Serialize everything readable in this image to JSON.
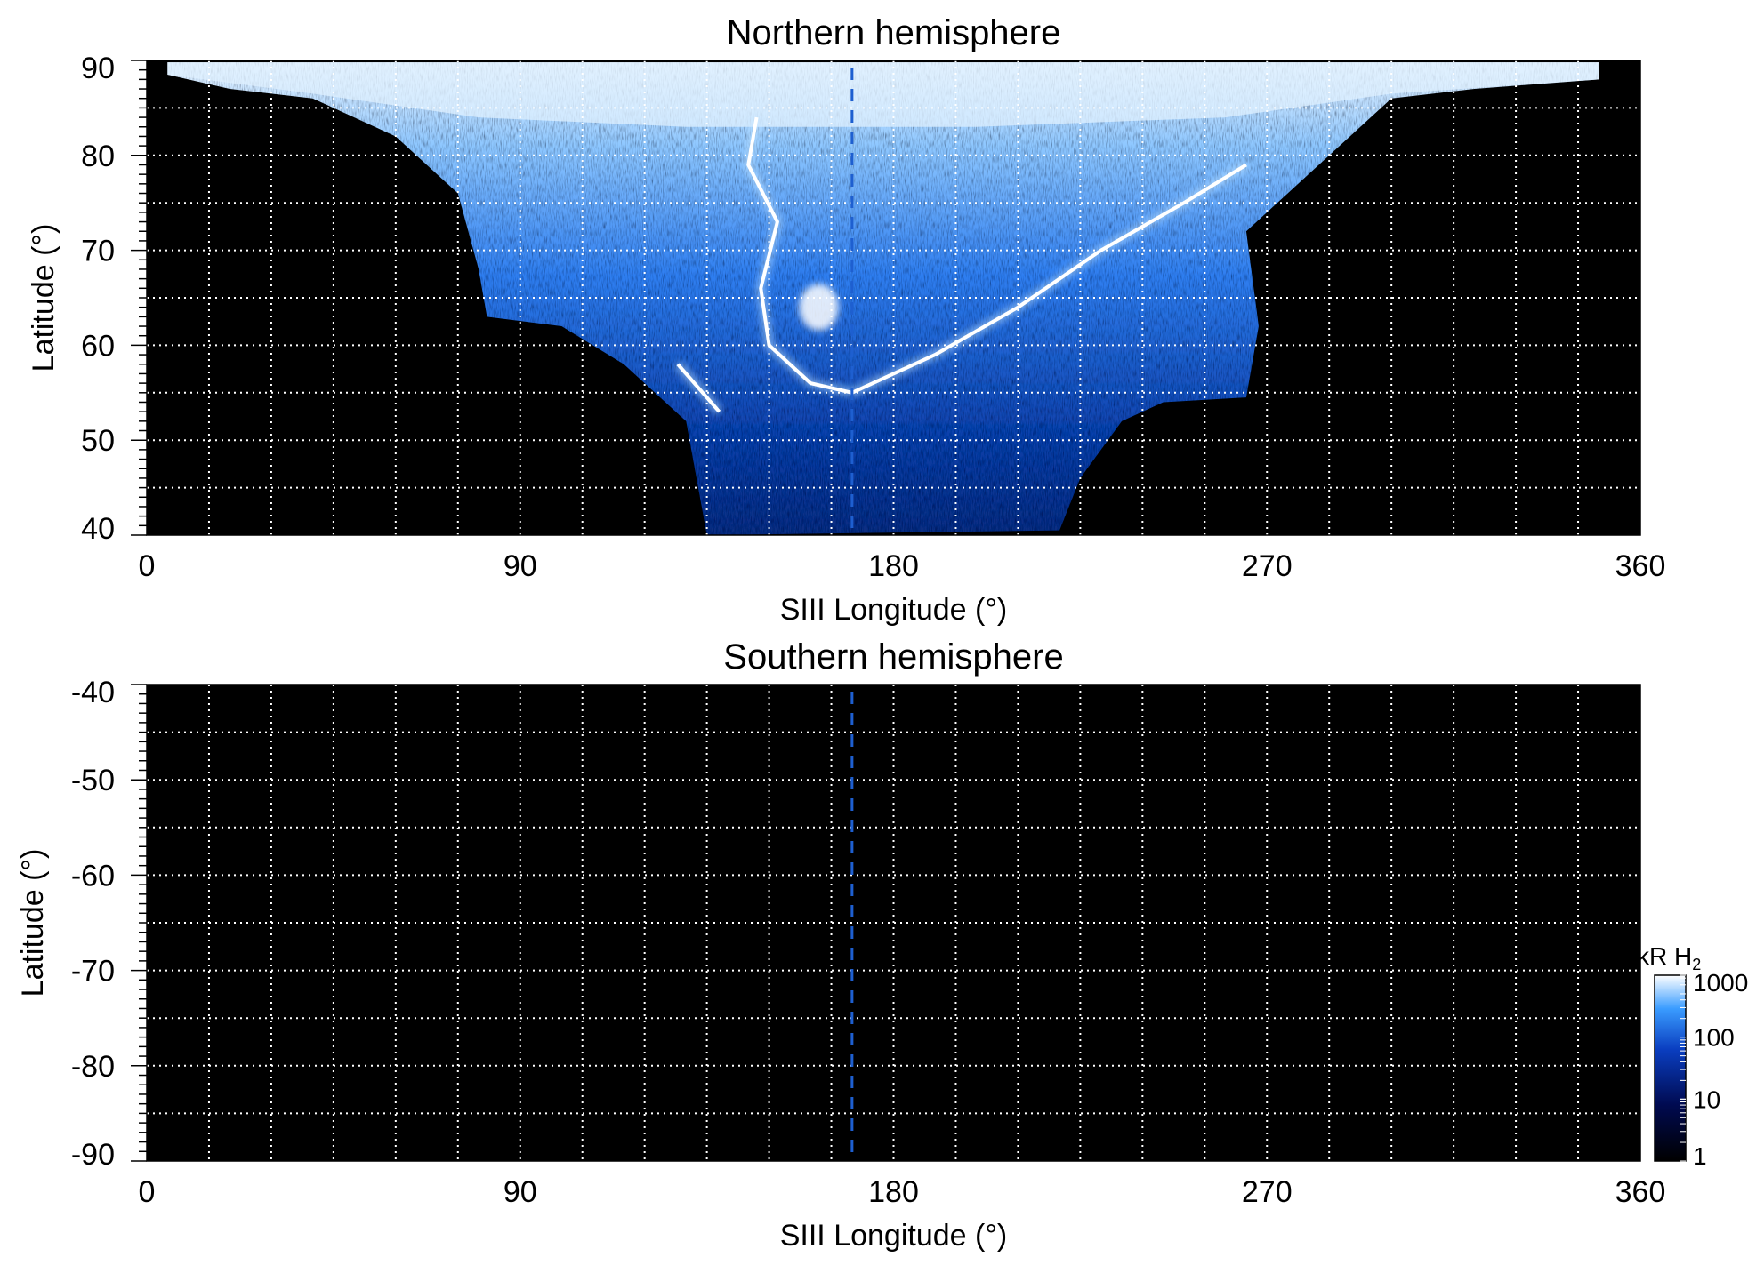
{
  "chart_data": [
    {
      "type": "heatmap",
      "title": "Northern hemisphere",
      "xlabel": "SIII Longitude (°)",
      "ylabel": "Latitude (°)",
      "xlim": [
        0,
        360
      ],
      "ylim": [
        40,
        90
      ],
      "xticks": [
        "0",
        "90",
        "180",
        "270",
        "360"
      ],
      "yticks": [
        "40",
        "50",
        "60",
        "70",
        "80",
        "90"
      ],
      "grid": true,
      "grid_style": "dotted-white",
      "background": "#000000",
      "reference_line_longitude": 170,
      "reference_line_color": "#1e5fd0",
      "coverage_region": {
        "lon_range": [
          0,
          350
        ],
        "lower_boundary": [
          [
            5,
            88.5
          ],
          [
            20,
            87
          ],
          [
            40,
            86
          ],
          [
            60,
            82
          ],
          [
            75,
            76
          ],
          [
            80,
            68
          ],
          [
            82,
            63
          ],
          [
            100,
            62
          ],
          [
            115,
            58
          ],
          [
            130,
            52
          ],
          [
            135,
            40
          ],
          [
            220,
            40.5
          ],
          [
            225,
            46
          ],
          [
            235,
            52
          ],
          [
            245,
            54
          ],
          [
            265,
            54.5
          ],
          [
            268,
            62
          ],
          [
            265,
            72
          ],
          [
            285,
            80
          ],
          [
            300,
            86
          ],
          [
            320,
            87
          ],
          [
            350,
            88
          ]
        ]
      },
      "emission_features": [
        {
          "name": "main oval dawn arc",
          "points": [
            [
              147,
              84
            ],
            [
              145,
              79
            ],
            [
              152,
              73
            ],
            [
              148,
              66
            ],
            [
              150,
              60
            ],
            [
              160,
              56
            ],
            [
              170,
              55
            ]
          ]
        },
        {
          "name": "main oval dusk arc",
          "points": [
            [
              170,
              55
            ],
            [
              190,
              59
            ],
            [
              210,
              64
            ],
            [
              230,
              70
            ],
            [
              250,
              75
            ],
            [
              265,
              79
            ]
          ]
        },
        {
          "name": "bright patch",
          "points": [
            [
              162,
              64
            ]
          ]
        },
        {
          "name": "equatorward arc",
          "points": [
            [
              128,
              58
            ],
            [
              138,
              53
            ]
          ]
        }
      ]
    },
    {
      "type": "heatmap",
      "title": "Southern hemisphere",
      "xlabel": "SIII Longitude (°)",
      "ylabel": "Latitude (°)",
      "xlim": [
        0,
        360
      ],
      "ylim": [
        -90,
        -40
      ],
      "xticks": [
        "0",
        "90",
        "180",
        "270",
        "360"
      ],
      "yticks": [
        "-90",
        "-80",
        "-70",
        "-60",
        "-50",
        "-40"
      ],
      "grid": true,
      "grid_style": "dotted-white",
      "background": "#000000",
      "reference_line_longitude": 170,
      "reference_line_color": "#1e5fd0",
      "coverage_region": null
    }
  ],
  "colorbar": {
    "label_main": "kR H",
    "label_sub": "2",
    "scale": "log",
    "range": [
      1,
      1000
    ],
    "ticks": [
      "1",
      "10",
      "100",
      "1000"
    ],
    "colors": [
      "#000000",
      "#000a50",
      "#0a3ec0",
      "#3a9cff",
      "#ffffff"
    ]
  }
}
